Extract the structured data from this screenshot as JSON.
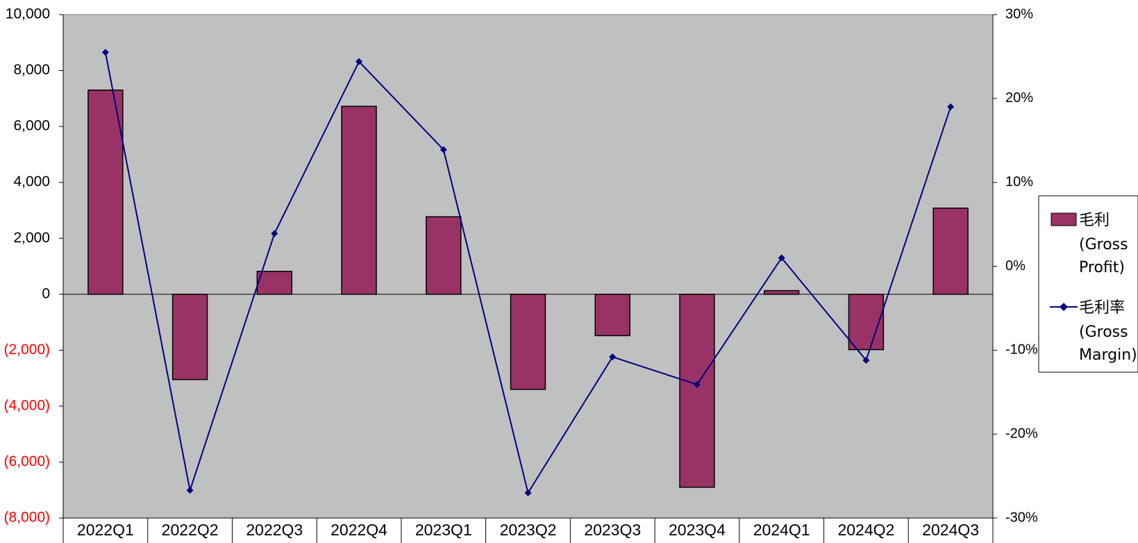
{
  "chart_data": {
    "type": "bar",
    "categories": [
      "2022Q1",
      "2022Q2",
      "2022Q3",
      "2022Q4",
      "2023Q1",
      "2023Q2",
      "2023Q3",
      "2023Q4",
      "2024Q1",
      "2024Q2",
      "2024Q3"
    ],
    "series": [
      {
        "name": "毛利 (Gross Profit)",
        "name_lines": [
          "毛利",
          "(Gross",
          "Profit)"
        ],
        "type": "bar",
        "axis": "left",
        "color": "#993366",
        "values": [
          7300,
          -3050,
          820,
          6720,
          2770,
          -3400,
          -1480,
          -6900,
          130,
          -1980,
          3080
        ]
      },
      {
        "name": "毛利率 (Gross Margin)",
        "name_lines": [
          "毛利率",
          "(Gross",
          "Margin)"
        ],
        "type": "line",
        "axis": "right",
        "color": "#000080",
        "values": [
          25.5,
          -26.7,
          3.9,
          24.4,
          13.9,
          -27.0,
          -10.8,
          -14.1,
          1.0,
          -11.2,
          19.0
        ]
      }
    ],
    "y_left": {
      "min": -8000,
      "max": 10000,
      "ticks": [
        10000,
        8000,
        6000,
        4000,
        2000,
        0,
        -2000,
        -4000,
        -6000,
        -8000
      ],
      "tick_labels": [
        "10,000",
        "8,000",
        "6,000",
        "4,000",
        "2,000",
        "0",
        "(2,000)",
        "(4,000)",
        "(6,000)",
        "(8,000)"
      ],
      "negative_color": "#ff0000"
    },
    "y_right": {
      "min": -30,
      "max": 30,
      "ticks": [
        30,
        20,
        10,
        0,
        -10,
        -20,
        -30
      ],
      "tick_labels": [
        "30%",
        "20%",
        "10%",
        "0%",
        "-10%",
        "-20%",
        "-30%"
      ]
    },
    "plot_background": "#c0c0c0",
    "legend_position": "right"
  }
}
